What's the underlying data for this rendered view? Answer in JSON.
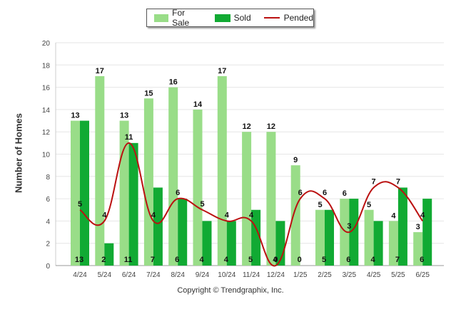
{
  "chart_data": {
    "type": "bar",
    "ylabel": "Number of Homes",
    "ylim": [
      0,
      20
    ],
    "yticks": [
      0,
      2,
      4,
      6,
      8,
      10,
      12,
      14,
      16,
      18,
      20
    ],
    "categories": [
      "4/24",
      "5/24",
      "6/24",
      "7/24",
      "8/24",
      "9/24",
      "10/24",
      "11/24",
      "12/24",
      "1/25",
      "2/25",
      "3/25",
      "4/25",
      "5/25",
      "6/25"
    ],
    "series": [
      {
        "name": "For Sale",
        "kind": "bar",
        "color": "#99dd88",
        "values": [
          13,
          17,
          13,
          15,
          16,
          14,
          17,
          12,
          12,
          9,
          5,
          6,
          5,
          4,
          3
        ]
      },
      {
        "name": "Sold",
        "kind": "bar",
        "color": "#11aa33",
        "values": [
          13,
          2,
          11,
          7,
          6,
          4,
          4,
          5,
          4,
          0,
          5,
          6,
          4,
          7,
          6
        ]
      },
      {
        "name": "Pended",
        "kind": "line",
        "color": "#bb1111",
        "values": [
          5,
          4,
          11,
          4,
          6,
          5,
          4,
          4,
          0,
          6,
          6,
          3,
          7,
          7,
          4
        ]
      }
    ],
    "legend_position": "top-center",
    "grid": true
  },
  "footer": {
    "copyright": "Copyright © Trendgraphix, Inc."
  }
}
